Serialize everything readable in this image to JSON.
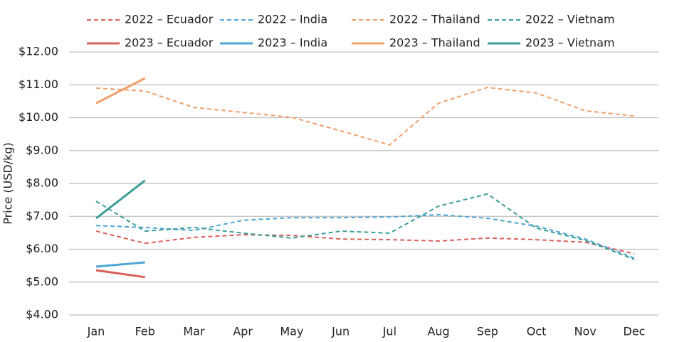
{
  "chart_data": {
    "type": "line",
    "y_label": "Price (USD/kg)",
    "categories": [
      "Jan",
      "Feb",
      "Mar",
      "Apr",
      "May",
      "Jun",
      "Jul",
      "Aug",
      "Sep",
      "Oct",
      "Nov",
      "Dec"
    ],
    "ylim": [
      4,
      12
    ],
    "yticks": [
      {
        "value": 4,
        "label": "$4.00"
      },
      {
        "value": 5,
        "label": "$5.00"
      },
      {
        "value": 6,
        "label": "$6.00"
      },
      {
        "value": 7,
        "label": "$7.00"
      },
      {
        "value": 8,
        "label": "$8.00"
      },
      {
        "value": 9,
        "label": "$9.00"
      },
      {
        "value": 10,
        "label": "$10.00"
      },
      {
        "value": 11,
        "label": "$11.00"
      },
      {
        "value": 12,
        "label": "$12.00"
      }
    ],
    "grid": true,
    "legend": "top",
    "series": [
      {
        "name": "2022 – Ecuador",
        "color": "#d9605a",
        "dashed": true,
        "values": [
          6.55,
          6.18,
          6.36,
          6.44,
          6.42,
          6.31,
          6.29,
          6.25,
          6.34,
          6.29,
          6.21,
          5.86
        ]
      },
      {
        "name": "2022 – India",
        "color": "#4ea6d6",
        "dashed": true,
        "values": [
          6.72,
          6.66,
          6.57,
          6.88,
          6.96,
          6.96,
          6.98,
          7.05,
          6.94,
          6.7,
          6.31,
          5.73
        ]
      },
      {
        "name": "2022 – Thailand",
        "color": "#f0a06a",
        "dashed": true,
        "values": [
          10.9,
          10.81,
          10.31,
          10.16,
          10.01,
          9.6,
          9.17,
          10.44,
          10.92,
          10.75,
          10.21,
          10.05
        ]
      },
      {
        "name": "2022 – Vietnam",
        "color": "#3a9e97",
        "dashed": true,
        "values": [
          7.46,
          6.55,
          6.66,
          6.49,
          6.34,
          6.55,
          6.49,
          7.31,
          7.68,
          6.64,
          6.27,
          5.69
        ]
      },
      {
        "name": "2023 – Ecuador",
        "color": "#d9605a",
        "dashed": false,
        "values": [
          5.36,
          5.15,
          null,
          null,
          null,
          null,
          null,
          null,
          null,
          null,
          null,
          null
        ]
      },
      {
        "name": "2023 – India",
        "color": "#4ea6d6",
        "dashed": false,
        "values": [
          5.47,
          5.6,
          null,
          null,
          null,
          null,
          null,
          null,
          null,
          null,
          null,
          null
        ]
      },
      {
        "name": "2023 – Thailand",
        "color": "#f0a06a",
        "dashed": false,
        "values": [
          10.44,
          11.2,
          null,
          null,
          null,
          null,
          null,
          null,
          null,
          null,
          null,
          null
        ]
      },
      {
        "name": "2023 – Vietnam",
        "color": "#3a9e97",
        "dashed": false,
        "values": [
          6.94,
          8.09,
          null,
          null,
          null,
          null,
          null,
          null,
          null,
          null,
          null,
          null
        ]
      }
    ]
  }
}
